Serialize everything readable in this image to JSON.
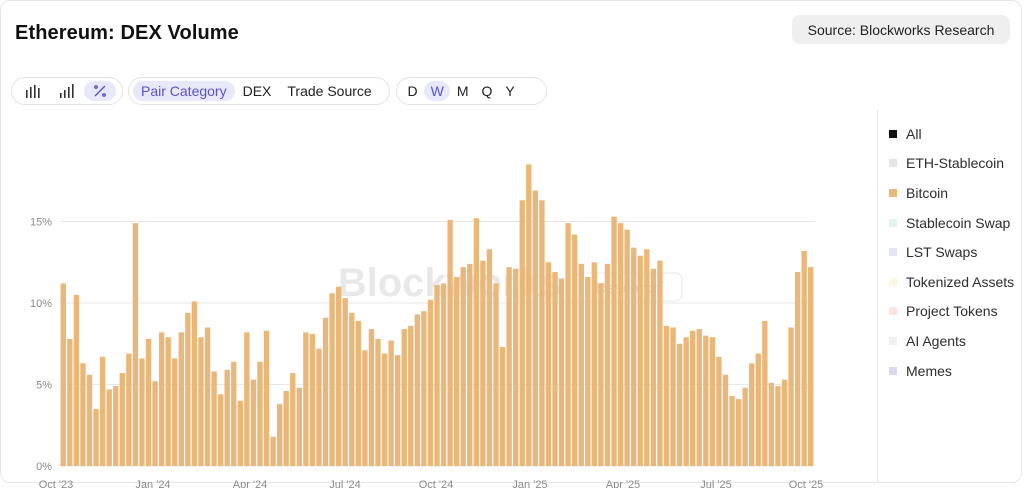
{
  "header": {
    "title": "Ethereum: DEX Volume",
    "source_label": "Source: Blockworks Research"
  },
  "toolbar": {
    "chart_types": [
      {
        "icon": "bar-chart-icon",
        "active": false
      },
      {
        "icon": "stacked-bar-chart-icon",
        "active": false
      },
      {
        "icon": "percent-icon",
        "active": true
      }
    ],
    "breakdowns": [
      {
        "label": "Pair Category",
        "active": true
      },
      {
        "label": "DEX",
        "active": false
      },
      {
        "label": "Trade Source",
        "active": false
      }
    ],
    "periods": [
      {
        "label": "D",
        "active": false
      },
      {
        "label": "W",
        "active": true
      },
      {
        "label": "M",
        "active": false
      },
      {
        "label": "Q",
        "active": false
      },
      {
        "label": "Y",
        "active": false
      }
    ]
  },
  "legend": [
    {
      "label": "All",
      "color": "#111111"
    },
    {
      "label": "ETH-Stablecoin",
      "color": "#e6e6e6"
    },
    {
      "label": "Bitcoin",
      "color": "#ebb779"
    },
    {
      "label": "Stablecoin Swap",
      "color": "#e3f4ec"
    },
    {
      "label": "LST Swaps",
      "color": "#e2e6f2"
    },
    {
      "label": "Tokenized Assets",
      "color": "#fbf8df"
    },
    {
      "label": "Project Tokens",
      "color": "#fbe2e3"
    },
    {
      "label": "AI Agents",
      "color": "#efefef"
    },
    {
      "label": "Memes",
      "color": "#dcd8f0"
    }
  ],
  "watermark": {
    "brand": "Blockworks",
    "sub": "Research"
  },
  "colors": {
    "bar": "#ebb779",
    "active_pill_bg": "#e8e8fb",
    "active_pill_text": "#5654c9"
  },
  "chart_data": {
    "type": "bar",
    "series": [
      {
        "name": "Bitcoin"
      }
    ],
    "x_tick_labels": [
      "Oct '23",
      "Jan '24",
      "Apr '24",
      "Jul '24",
      "Oct '24",
      "Jan '25",
      "Apr '25",
      "Jul '25",
      "Oct '25"
    ],
    "y_tick_labels": [
      "0%",
      "5%",
      "10%",
      "15%"
    ],
    "ylim": [
      0,
      20
    ],
    "grid": true,
    "legend_position": "right",
    "values": [
      11.2,
      7.8,
      10.5,
      6.3,
      5.6,
      3.5,
      6.7,
      4.7,
      4.9,
      5.7,
      6.9,
      14.9,
      6.6,
      7.8,
      5.2,
      8.2,
      7.9,
      6.6,
      8.2,
      9.4,
      10.1,
      7.9,
      8.5,
      5.8,
      4.4,
      5.9,
      6.4,
      4.0,
      8.2,
      5.3,
      6.4,
      8.3,
      1.8,
      3.8,
      4.6,
      5.7,
      4.8,
      8.2,
      8.1,
      7.2,
      9.1,
      10.6,
      11.0,
      10.3,
      9.4,
      8.9,
      7.1,
      8.4,
      7.8,
      6.9,
      7.7,
      6.8,
      8.4,
      8.6,
      9.3,
      9.5,
      10.2,
      11.1,
      11.2,
      15.1,
      11.6,
      12.2,
      12.4,
      15.2,
      12.6,
      13.3,
      11.2,
      7.3,
      12.2,
      12.1,
      16.3,
      18.5,
      16.9,
      16.3,
      12.5,
      11.9,
      11.5,
      14.9,
      14.2,
      12.4,
      11.6,
      12.5,
      11.2,
      12.4,
      15.3,
      14.9,
      14.5,
      13.4,
      12.9,
      13.3,
      12.1,
      12.6,
      8.6,
      8.5,
      7.5,
      7.9,
      8.3,
      8.4,
      8.0,
      7.9,
      6.7,
      5.6,
      4.3,
      4.1,
      4.8,
      6.3,
      6.9,
      8.9,
      5.1,
      4.9,
      5.3,
      8.5,
      11.9,
      13.2,
      12.2
    ]
  }
}
